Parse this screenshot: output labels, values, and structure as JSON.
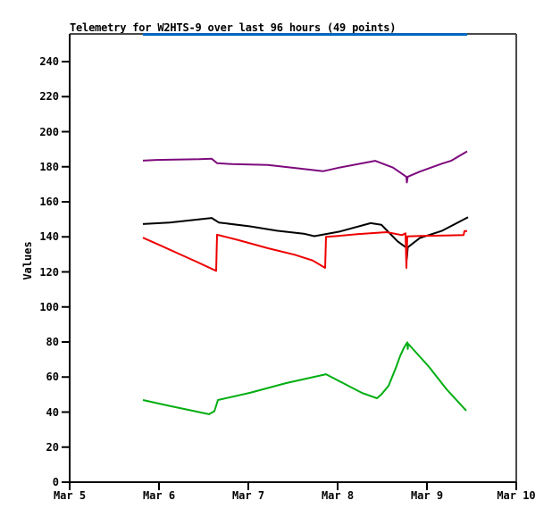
{
  "page": {
    "background": "#ffffff"
  },
  "chart_data": {
    "type": "line",
    "title": "Telemetry for W2HTS-9 over last 96 hours (49 points)",
    "xlabel": "",
    "ylabel": "Values",
    "grid": false,
    "legend": "none",
    "frame_color": "#4a4a4a",
    "axis_color": "#000000",
    "ylim": [
      0,
      256
    ],
    "y_ticks": [
      0,
      20,
      40,
      60,
      80,
      100,
      120,
      140,
      160,
      180,
      200,
      220,
      240
    ],
    "x_axis": {
      "tick_labels": [
        "Mar 5",
        "Mar 6",
        "Mar 7",
        "Mar 8",
        "Mar 9",
        "Mar 10"
      ],
      "tick_days": [
        0,
        1,
        2,
        3,
        4,
        5
      ],
      "xlim_days": [
        0,
        5
      ]
    },
    "series": [
      {
        "name": "blue-offscale-line",
        "color": "#0067c5",
        "stroke_width": 3,
        "points_days_value": [
          [
            0.82,
            255.5
          ],
          [
            4.45,
            255.5
          ]
        ]
      },
      {
        "name": "purple-line",
        "color": "#7d0a7d",
        "stroke_width": 2,
        "points_days_value": [
          [
            0.82,
            183.5
          ],
          [
            0.97,
            183.9
          ],
          [
            1.45,
            184.3
          ],
          [
            1.59,
            184.6
          ],
          [
            1.65,
            182.0
          ],
          [
            1.82,
            181.5
          ],
          [
            2.22,
            181.0
          ],
          [
            2.62,
            178.7
          ],
          [
            2.84,
            177.5
          ],
          [
            3.02,
            179.5
          ],
          [
            3.42,
            183.4
          ],
          [
            3.62,
            179.5
          ],
          [
            3.72,
            176.0
          ],
          [
            3.77,
            174.2
          ],
          [
            3.775,
            171.0
          ],
          [
            3.785,
            174.3
          ],
          [
            3.92,
            177.2
          ],
          [
            4.17,
            181.8
          ],
          [
            4.27,
            183.4
          ],
          [
            4.45,
            188.8
          ]
        ]
      },
      {
        "name": "black-line",
        "color": "#000000",
        "stroke_width": 2,
        "points_days_value": [
          [
            0.82,
            147.3
          ],
          [
            1.12,
            148.2
          ],
          [
            1.59,
            150.8
          ],
          [
            1.67,
            148.2
          ],
          [
            2.02,
            146.0
          ],
          [
            2.32,
            143.5
          ],
          [
            2.62,
            141.8
          ],
          [
            2.74,
            140.4
          ],
          [
            3.02,
            143.0
          ],
          [
            3.37,
            147.8
          ],
          [
            3.49,
            146.9
          ],
          [
            3.67,
            137.5
          ],
          [
            3.77,
            133.8
          ],
          [
            3.775,
            127.5
          ],
          [
            3.785,
            134.0
          ],
          [
            3.92,
            139.3
          ],
          [
            4.17,
            143.5
          ],
          [
            4.46,
            151.2
          ]
        ]
      },
      {
        "name": "red-line",
        "color": "#ee0000",
        "stroke_width": 2,
        "points_days_value": [
          [
            0.82,
            139.5
          ],
          [
            1.02,
            135.0
          ],
          [
            1.22,
            130.4
          ],
          [
            1.42,
            125.8
          ],
          [
            1.64,
            120.6
          ],
          [
            1.65,
            141.2
          ],
          [
            1.87,
            138.4
          ],
          [
            2.22,
            133.5
          ],
          [
            2.52,
            129.8
          ],
          [
            2.72,
            126.5
          ],
          [
            2.86,
            122.3
          ],
          [
            2.87,
            140.0
          ],
          [
            3.02,
            140.6
          ],
          [
            3.22,
            141.5
          ],
          [
            3.55,
            142.7
          ],
          [
            3.72,
            141.0
          ],
          [
            3.76,
            142.0
          ],
          [
            3.77,
            122.3
          ],
          [
            3.78,
            140.3
          ],
          [
            3.92,
            140.5
          ],
          [
            4.2,
            140.8
          ],
          [
            4.41,
            141.0
          ],
          [
            4.42,
            143.3
          ],
          [
            4.45,
            143.3
          ]
        ]
      },
      {
        "name": "green-line",
        "color": "#00ae10",
        "stroke_width": 2,
        "points_days_value": [
          [
            0.82,
            46.9
          ],
          [
            1.12,
            43.5
          ],
          [
            1.4,
            40.5
          ],
          [
            1.56,
            38.8
          ],
          [
            1.62,
            40.5
          ],
          [
            1.66,
            46.9
          ],
          [
            2.02,
            51.0
          ],
          [
            2.42,
            56.5
          ],
          [
            2.87,
            61.6
          ],
          [
            3.12,
            55.0
          ],
          [
            3.27,
            51.0
          ],
          [
            3.44,
            47.9
          ],
          [
            3.49,
            50.1
          ],
          [
            3.57,
            55.0
          ],
          [
            3.65,
            65.0
          ],
          [
            3.7,
            72.0
          ],
          [
            3.74,
            76.5
          ],
          [
            3.78,
            79.8
          ],
          [
            3.785,
            76.0
          ],
          [
            3.79,
            79.0
          ],
          [
            4.02,
            66.0
          ],
          [
            4.22,
            53.0
          ],
          [
            4.44,
            40.8
          ]
        ]
      }
    ]
  }
}
